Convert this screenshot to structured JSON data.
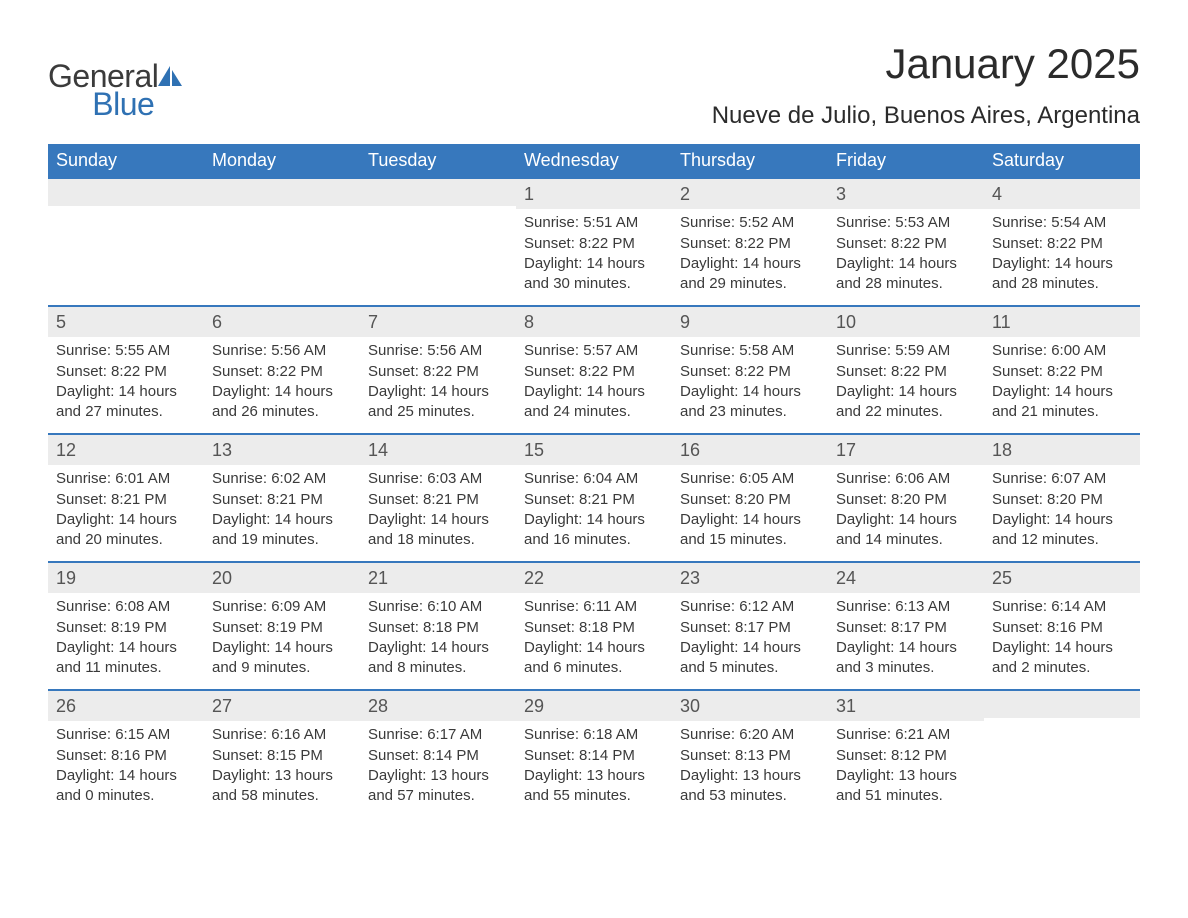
{
  "logo": {
    "line1": "General",
    "line2": "Blue",
    "color_general": "#3b3b3b",
    "color_blue": "#2f71b3",
    "icon_color": "#2f71b3"
  },
  "title": "January 2025",
  "location": "Nueve de Julio, Buenos Aires, Argentina",
  "colors": {
    "header_bg": "#3778bd",
    "header_text": "#ffffff",
    "daynum_bg": "#ececec",
    "daynum_text": "#555555",
    "body_text": "#3a3a3a",
    "week_border": "#3778bd",
    "page_bg": "#ffffff"
  },
  "days_of_week": [
    "Sunday",
    "Monday",
    "Tuesday",
    "Wednesday",
    "Thursday",
    "Friday",
    "Saturday"
  ],
  "weeks": [
    [
      {
        "n": "",
        "sunrise": "",
        "sunset": "",
        "daylight": ""
      },
      {
        "n": "",
        "sunrise": "",
        "sunset": "",
        "daylight": ""
      },
      {
        "n": "",
        "sunrise": "",
        "sunset": "",
        "daylight": ""
      },
      {
        "n": "1",
        "sunrise": "Sunrise: 5:51 AM",
        "sunset": "Sunset: 8:22 PM",
        "daylight": "Daylight: 14 hours and 30 minutes."
      },
      {
        "n": "2",
        "sunrise": "Sunrise: 5:52 AM",
        "sunset": "Sunset: 8:22 PM",
        "daylight": "Daylight: 14 hours and 29 minutes."
      },
      {
        "n": "3",
        "sunrise": "Sunrise: 5:53 AM",
        "sunset": "Sunset: 8:22 PM",
        "daylight": "Daylight: 14 hours and 28 minutes."
      },
      {
        "n": "4",
        "sunrise": "Sunrise: 5:54 AM",
        "sunset": "Sunset: 8:22 PM",
        "daylight": "Daylight: 14 hours and 28 minutes."
      }
    ],
    [
      {
        "n": "5",
        "sunrise": "Sunrise: 5:55 AM",
        "sunset": "Sunset: 8:22 PM",
        "daylight": "Daylight: 14 hours and 27 minutes."
      },
      {
        "n": "6",
        "sunrise": "Sunrise: 5:56 AM",
        "sunset": "Sunset: 8:22 PM",
        "daylight": "Daylight: 14 hours and 26 minutes."
      },
      {
        "n": "7",
        "sunrise": "Sunrise: 5:56 AM",
        "sunset": "Sunset: 8:22 PM",
        "daylight": "Daylight: 14 hours and 25 minutes."
      },
      {
        "n": "8",
        "sunrise": "Sunrise: 5:57 AM",
        "sunset": "Sunset: 8:22 PM",
        "daylight": "Daylight: 14 hours and 24 minutes."
      },
      {
        "n": "9",
        "sunrise": "Sunrise: 5:58 AM",
        "sunset": "Sunset: 8:22 PM",
        "daylight": "Daylight: 14 hours and 23 minutes."
      },
      {
        "n": "10",
        "sunrise": "Sunrise: 5:59 AM",
        "sunset": "Sunset: 8:22 PM",
        "daylight": "Daylight: 14 hours and 22 minutes."
      },
      {
        "n": "11",
        "sunrise": "Sunrise: 6:00 AM",
        "sunset": "Sunset: 8:22 PM",
        "daylight": "Daylight: 14 hours and 21 minutes."
      }
    ],
    [
      {
        "n": "12",
        "sunrise": "Sunrise: 6:01 AM",
        "sunset": "Sunset: 8:21 PM",
        "daylight": "Daylight: 14 hours and 20 minutes."
      },
      {
        "n": "13",
        "sunrise": "Sunrise: 6:02 AM",
        "sunset": "Sunset: 8:21 PM",
        "daylight": "Daylight: 14 hours and 19 minutes."
      },
      {
        "n": "14",
        "sunrise": "Sunrise: 6:03 AM",
        "sunset": "Sunset: 8:21 PM",
        "daylight": "Daylight: 14 hours and 18 minutes."
      },
      {
        "n": "15",
        "sunrise": "Sunrise: 6:04 AM",
        "sunset": "Sunset: 8:21 PM",
        "daylight": "Daylight: 14 hours and 16 minutes."
      },
      {
        "n": "16",
        "sunrise": "Sunrise: 6:05 AM",
        "sunset": "Sunset: 8:20 PM",
        "daylight": "Daylight: 14 hours and 15 minutes."
      },
      {
        "n": "17",
        "sunrise": "Sunrise: 6:06 AM",
        "sunset": "Sunset: 8:20 PM",
        "daylight": "Daylight: 14 hours and 14 minutes."
      },
      {
        "n": "18",
        "sunrise": "Sunrise: 6:07 AM",
        "sunset": "Sunset: 8:20 PM",
        "daylight": "Daylight: 14 hours and 12 minutes."
      }
    ],
    [
      {
        "n": "19",
        "sunrise": "Sunrise: 6:08 AM",
        "sunset": "Sunset: 8:19 PM",
        "daylight": "Daylight: 14 hours and 11 minutes."
      },
      {
        "n": "20",
        "sunrise": "Sunrise: 6:09 AM",
        "sunset": "Sunset: 8:19 PM",
        "daylight": "Daylight: 14 hours and 9 minutes."
      },
      {
        "n": "21",
        "sunrise": "Sunrise: 6:10 AM",
        "sunset": "Sunset: 8:18 PM",
        "daylight": "Daylight: 14 hours and 8 minutes."
      },
      {
        "n": "22",
        "sunrise": "Sunrise: 6:11 AM",
        "sunset": "Sunset: 8:18 PM",
        "daylight": "Daylight: 14 hours and 6 minutes."
      },
      {
        "n": "23",
        "sunrise": "Sunrise: 6:12 AM",
        "sunset": "Sunset: 8:17 PM",
        "daylight": "Daylight: 14 hours and 5 minutes."
      },
      {
        "n": "24",
        "sunrise": "Sunrise: 6:13 AM",
        "sunset": "Sunset: 8:17 PM",
        "daylight": "Daylight: 14 hours and 3 minutes."
      },
      {
        "n": "25",
        "sunrise": "Sunrise: 6:14 AM",
        "sunset": "Sunset: 8:16 PM",
        "daylight": "Daylight: 14 hours and 2 minutes."
      }
    ],
    [
      {
        "n": "26",
        "sunrise": "Sunrise: 6:15 AM",
        "sunset": "Sunset: 8:16 PM",
        "daylight": "Daylight: 14 hours and 0 minutes."
      },
      {
        "n": "27",
        "sunrise": "Sunrise: 6:16 AM",
        "sunset": "Sunset: 8:15 PM",
        "daylight": "Daylight: 13 hours and 58 minutes."
      },
      {
        "n": "28",
        "sunrise": "Sunrise: 6:17 AM",
        "sunset": "Sunset: 8:14 PM",
        "daylight": "Daylight: 13 hours and 57 minutes."
      },
      {
        "n": "29",
        "sunrise": "Sunrise: 6:18 AM",
        "sunset": "Sunset: 8:14 PM",
        "daylight": "Daylight: 13 hours and 55 minutes."
      },
      {
        "n": "30",
        "sunrise": "Sunrise: 6:20 AM",
        "sunset": "Sunset: 8:13 PM",
        "daylight": "Daylight: 13 hours and 53 minutes."
      },
      {
        "n": "31",
        "sunrise": "Sunrise: 6:21 AM",
        "sunset": "Sunset: 8:12 PM",
        "daylight": "Daylight: 13 hours and 51 minutes."
      },
      {
        "n": "",
        "sunrise": "",
        "sunset": "",
        "daylight": ""
      }
    ]
  ]
}
